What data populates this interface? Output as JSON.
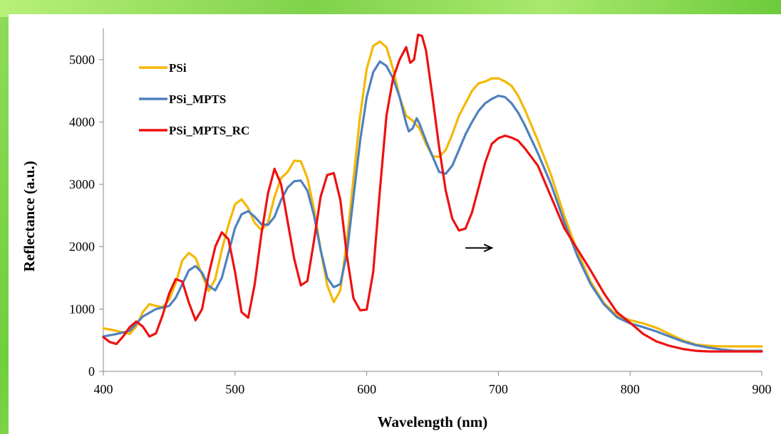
{
  "chart_data": {
    "type": "line",
    "title": "",
    "xlabel": "Wavelength (nm)",
    "ylabel": "Reflectance (a.u.)",
    "xlim": [
      400,
      900
    ],
    "ylim": [
      0,
      5500
    ],
    "xticks": [
      400,
      500,
      600,
      700,
      800,
      900
    ],
    "yticks": [
      0,
      1000,
      2000,
      3000,
      4000,
      5000
    ],
    "grid": false,
    "legend_position": "top-left",
    "annotations": [
      {
        "type": "arrow",
        "from": [
          675,
          1980
        ],
        "to": [
          695,
          1980
        ],
        "text": ""
      }
    ],
    "series": [
      {
        "name": "PSi",
        "color": "#f5b800",
        "x": [
          400,
          410,
          420,
          425,
          430,
          435,
          440,
          445,
          450,
          455,
          460,
          465,
          470,
          475,
          480,
          485,
          490,
          495,
          500,
          505,
          510,
          515,
          520,
          525,
          530,
          535,
          540,
          545,
          550,
          555,
          560,
          565,
          570,
          575,
          580,
          585,
          590,
          595,
          600,
          605,
          610,
          615,
          620,
          625,
          630,
          635,
          640,
          645,
          650,
          655,
          660,
          665,
          670,
          675,
          680,
          685,
          690,
          695,
          700,
          705,
          710,
          715,
          720,
          730,
          740,
          750,
          760,
          770,
          780,
          790,
          800,
          810,
          820,
          830,
          840,
          850,
          860,
          870,
          880,
          890,
          900
        ],
        "y": [
          690,
          650,
          600,
          720,
          950,
          1080,
          1050,
          1030,
          1150,
          1420,
          1780,
          1900,
          1820,
          1550,
          1290,
          1480,
          1950,
          2350,
          2680,
          2760,
          2620,
          2380,
          2270,
          2380,
          2800,
          3100,
          3200,
          3380,
          3370,
          3100,
          2600,
          1950,
          1380,
          1110,
          1300,
          2100,
          3100,
          4100,
          4850,
          5220,
          5290,
          5200,
          4850,
          4400,
          4100,
          4020,
          3900,
          3650,
          3450,
          3440,
          3550,
          3800,
          4100,
          4300,
          4500,
          4620,
          4650,
          4700,
          4700,
          4650,
          4580,
          4420,
          4200,
          3700,
          3150,
          2500,
          1920,
          1440,
          1100,
          900,
          820,
          770,
          700,
          600,
          500,
          430,
          410,
          400,
          400,
          400,
          400
        ]
      },
      {
        "name": "PSi_MPTS",
        "color": "#4f81bd",
        "x": [
          400,
          410,
          420,
          430,
          440,
          450,
          455,
          460,
          465,
          470,
          475,
          480,
          485,
          490,
          495,
          500,
          505,
          510,
          515,
          520,
          525,
          530,
          535,
          540,
          545,
          550,
          555,
          560,
          565,
          570,
          575,
          580,
          585,
          590,
          595,
          600,
          605,
          610,
          615,
          620,
          625,
          630,
          632,
          635,
          638,
          640,
          645,
          650,
          655,
          660,
          665,
          670,
          675,
          680,
          685,
          690,
          695,
          700,
          705,
          710,
          715,
          720,
          730,
          740,
          750,
          760,
          770,
          780,
          790,
          800,
          810,
          820,
          830,
          840,
          850,
          860,
          870,
          880,
          890,
          900
        ],
        "y": [
          560,
          600,
          650,
          880,
          1000,
          1050,
          1180,
          1400,
          1620,
          1690,
          1580,
          1370,
          1300,
          1500,
          1900,
          2300,
          2520,
          2570,
          2480,
          2360,
          2350,
          2480,
          2750,
          2950,
          3050,
          3060,
          2900,
          2500,
          1950,
          1500,
          1350,
          1400,
          1900,
          2800,
          3700,
          4400,
          4800,
          4970,
          4900,
          4700,
          4400,
          3980,
          3850,
          3900,
          4060,
          3980,
          3700,
          3450,
          3200,
          3170,
          3300,
          3550,
          3800,
          4000,
          4180,
          4300,
          4370,
          4420,
          4400,
          4300,
          4150,
          3950,
          3500,
          3000,
          2400,
          1850,
          1400,
          1080,
          870,
          770,
          710,
          640,
          560,
          480,
          420,
          380,
          350,
          330,
          330,
          330
        ]
      },
      {
        "name": "PSi_MPTS_RC",
        "color": "#ee1111",
        "x": [
          400,
          405,
          410,
          415,
          420,
          425,
          430,
          435,
          440,
          445,
          450,
          455,
          460,
          465,
          470,
          475,
          480,
          485,
          490,
          495,
          500,
          505,
          510,
          515,
          520,
          525,
          530,
          535,
          540,
          545,
          550,
          555,
          560,
          565,
          570,
          575,
          580,
          585,
          590,
          595,
          600,
          605,
          610,
          615,
          620,
          625,
          630,
          633,
          636,
          639,
          642,
          645,
          650,
          655,
          660,
          665,
          670,
          675,
          680,
          685,
          690,
          695,
          700,
          705,
          710,
          715,
          720,
          730,
          740,
          750,
          760,
          770,
          780,
          790,
          800,
          810,
          820,
          830,
          840,
          850,
          860,
          870,
          880,
          890,
          900
        ],
        "y": [
          550,
          470,
          440,
          560,
          710,
          800,
          720,
          560,
          610,
          900,
          1250,
          1480,
          1440,
          1100,
          820,
          1000,
          1550,
          2000,
          2230,
          2120,
          1600,
          950,
          860,
          1400,
          2200,
          2850,
          3250,
          3000,
          2400,
          1800,
          1380,
          1450,
          2100,
          2800,
          3150,
          3180,
          2750,
          1850,
          1170,
          980,
          990,
          1600,
          2900,
          4100,
          4700,
          5000,
          5200,
          4950,
          5000,
          5400,
          5380,
          5150,
          4400,
          3600,
          2900,
          2450,
          2260,
          2290,
          2550,
          2950,
          3350,
          3650,
          3740,
          3780,
          3750,
          3700,
          3580,
          3300,
          2800,
          2300,
          1960,
          1620,
          1260,
          950,
          780,
          600,
          480,
          410,
          360,
          330,
          320,
          320,
          320,
          320,
          320
        ]
      }
    ]
  }
}
